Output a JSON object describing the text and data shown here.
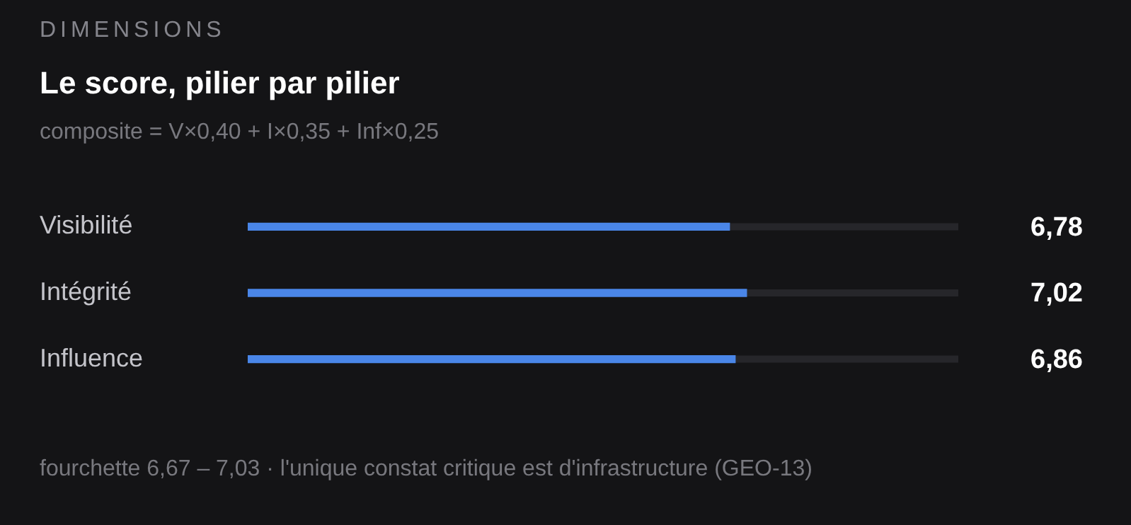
{
  "chart_data": {
    "type": "bar",
    "orientation": "horizontal",
    "title": "Le score, pilier par pilier",
    "subtitle": "composite = V×0,40 + I×0,35 + Inf×0,25",
    "annotations": [
      "DIMENSIONS",
      "fourchette 6,67 – 7,03 · l'unique constat critique est d'infrastructure (GEO-13)"
    ],
    "categories": [
      "Visibilité",
      "Intégrité",
      "Influence"
    ],
    "values": [
      6.78,
      7.02,
      6.86
    ],
    "color": "#4a86e8",
    "value_labels": [
      "6,78",
      "7,02",
      "6,86"
    ],
    "xlim": [
      0,
      10
    ],
    "legend": false
  }
}
